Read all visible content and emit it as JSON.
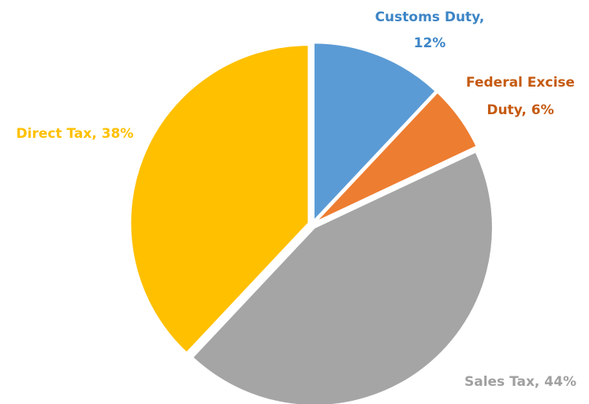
{
  "chart_data": {
    "type": "pie",
    "values": [
      12,
      6,
      44,
      38
    ],
    "labels": [
      [
        "Customs Duty,",
        "12%"
      ],
      [
        "Federal Excise",
        "Duty, 6%"
      ],
      [
        "Sales Tax, 44%"
      ],
      [
        "Direct Tax, 38%"
      ]
    ],
    "colors": [
      "#5b9bd5",
      "#ed7d31",
      "#a5a5a5",
      "#ffc000"
    ],
    "label_colors": [
      "#3d85c6",
      "#c55a11",
      "#a0a0a0",
      "#ffc000"
    ]
  }
}
